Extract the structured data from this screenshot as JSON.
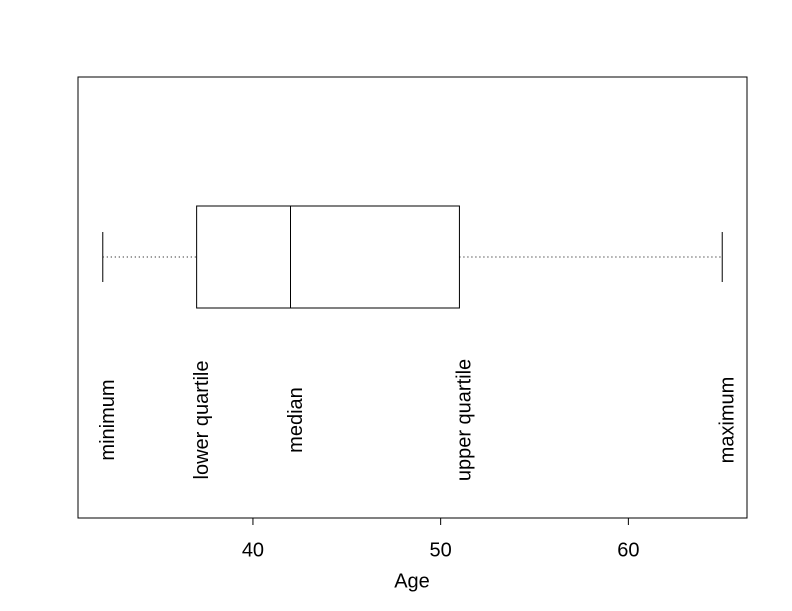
{
  "chart_data": {
    "type": "box",
    "x_label": "Age",
    "min": 32,
    "q1": 37,
    "median": 42,
    "q3": 51,
    "max": 65,
    "annotations": [
      "minimum",
      "lower quartile",
      "median",
      "upper quartile",
      "maximum"
    ],
    "xlim": [
      30.68,
      66.32
    ],
    "xticks": [
      40,
      50,
      60
    ],
    "color": "#000000"
  }
}
